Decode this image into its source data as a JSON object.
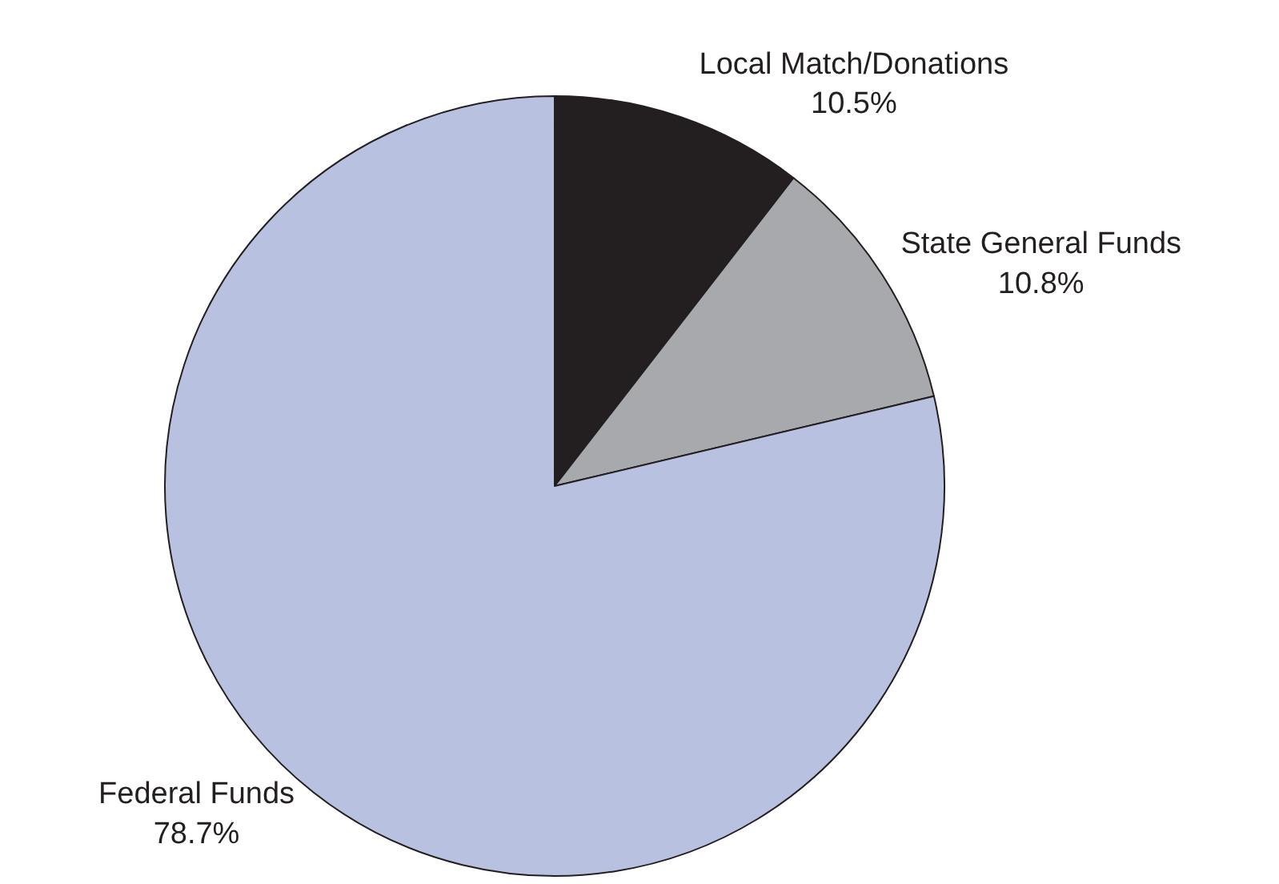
{
  "chart_data": {
    "type": "pie",
    "categories": [
      "Local Match/Donations",
      "State General Funds",
      "Federal Funds"
    ],
    "values": [
      10.5,
      10.8,
      78.7
    ],
    "value_labels": [
      "10.5%",
      "10.8%",
      "78.7%"
    ],
    "colors": [
      "#231f20",
      "#a7a9ac",
      "#b8c1e0"
    ],
    "legend": false
  }
}
